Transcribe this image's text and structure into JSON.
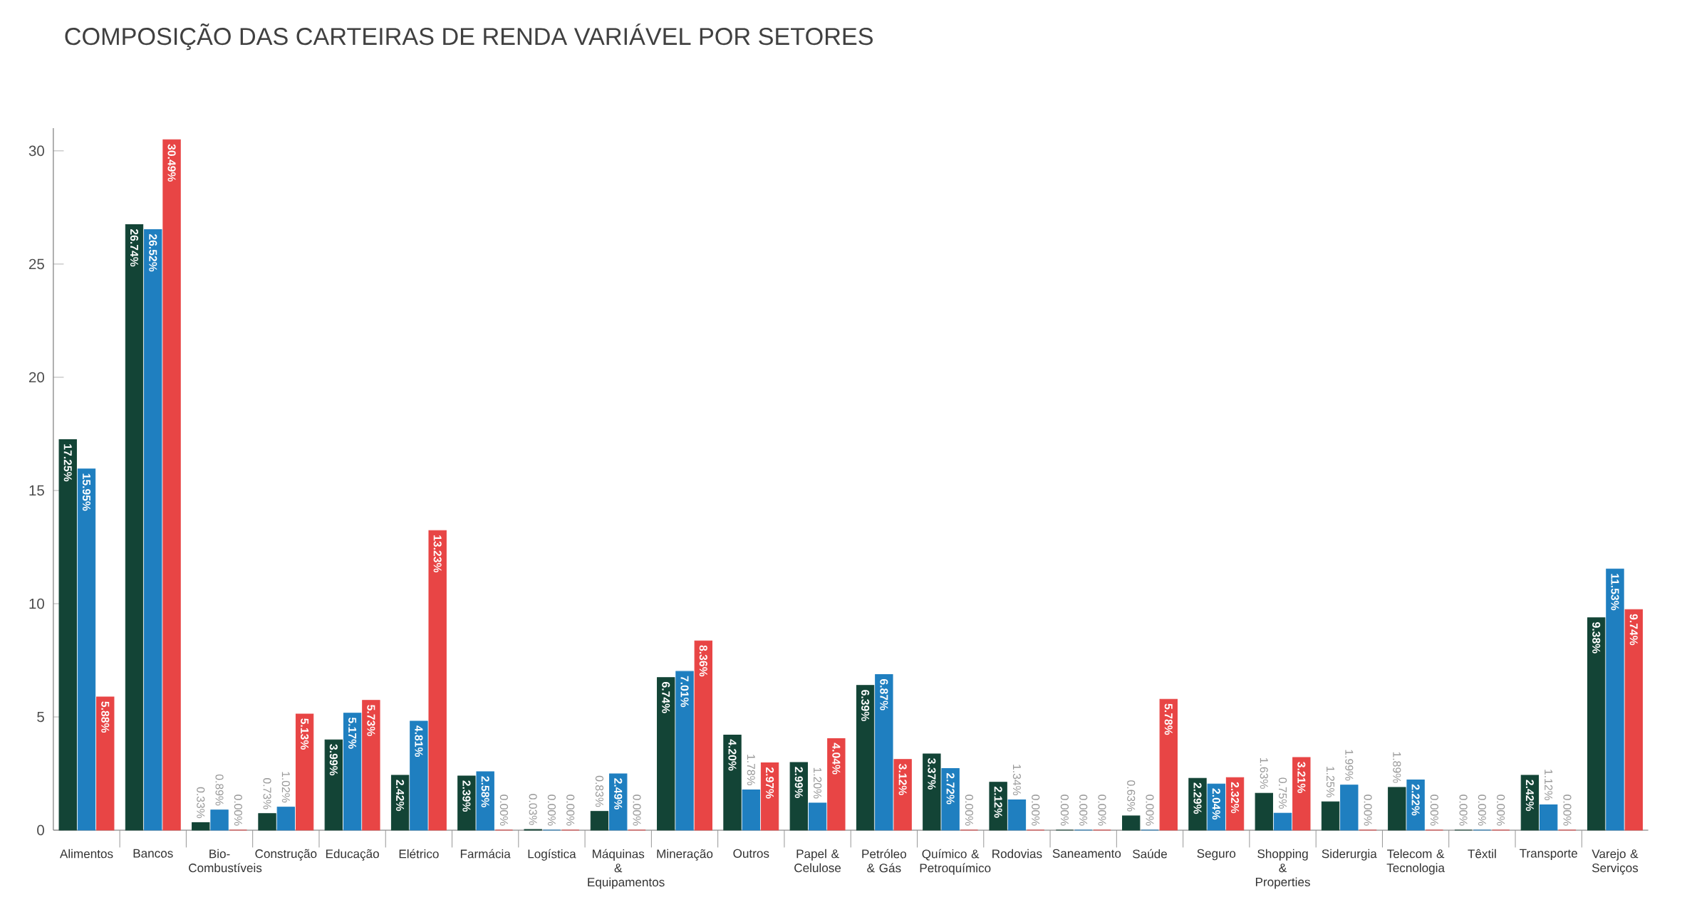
{
  "chart_data": {
    "type": "bar",
    "title": "COMPOSIÇÃO DAS CARTEIRAS DE RENDA VARIÁVEL POR SETORES",
    "categories": [
      "Alimentos",
      "Bancos",
      "Bio- Combustíveis",
      "Construção",
      "Educação",
      "Elétrico",
      "Farmácia",
      "Logística",
      "Máquinas & Equipamentos",
      "Mineração",
      "Outros",
      "Papel & Celulose",
      "Petróleo & Gás",
      "Químico & Petroquímico",
      "Rodovias",
      "Saneamento",
      "Saúde",
      "Seguro",
      "Shopping & Properties",
      "Siderurgia",
      "Telecom & Tecnologia",
      "Têxtil",
      "Transporte",
      "Varejo & Serviços"
    ],
    "series": [
      {
        "color": "#134436",
        "values": [
          17.25,
          26.74,
          0.33,
          0.73,
          3.99,
          2.42,
          2.39,
          0.03,
          0.83,
          6.74,
          4.2,
          2.99,
          6.39,
          3.37,
          2.12,
          0.0,
          0.63,
          2.29,
          1.63,
          1.25,
          1.89,
          0.0,
          2.42,
          9.38
        ],
        "value_labels": [
          "17.25%",
          "26.74%",
          "0.33%",
          "0.73%",
          "3.99%",
          "2.42%",
          "2.39%",
          "0.03%",
          "0.83%",
          "6.74%",
          "4.20%",
          "2.99%",
          "6.39%",
          "3.37%",
          "2.12%",
          "0.00%",
          "0.63%",
          "2.29%",
          "1.63%",
          "1.25%",
          "1.89%",
          "0.00%",
          "2.42%",
          "9.38%"
        ]
      },
      {
        "color": "#1f7fc0",
        "values": [
          15.95,
          26.52,
          0.89,
          1.02,
          5.17,
          4.81,
          2.58,
          0.0,
          2.49,
          7.01,
          1.78,
          1.2,
          6.87,
          2.72,
          1.34,
          0.0,
          0.0,
          2.04,
          0.75,
          1.99,
          2.22,
          0.0,
          1.12,
          11.53
        ],
        "value_labels": [
          "15.95%",
          "26.52%",
          "0.89%",
          "1.02%",
          "5.17%",
          "4.81%",
          "2.58%",
          "0.00%",
          "2.49%",
          "7.01%",
          "1.78%",
          "1.20%",
          "6.87%",
          "2.72%",
          "1.34%",
          "0.00%",
          "0.00%",
          "2.04%",
          "0.75%",
          "1.99%",
          "2.22%",
          "0.00%",
          "1.12%",
          "11.53%"
        ]
      },
      {
        "color": "#e84545",
        "values": [
          5.88,
          30.49,
          0.0,
          5.13,
          5.73,
          13.23,
          0.0,
          0.0,
          0.0,
          8.36,
          2.97,
          4.04,
          3.12,
          0.0,
          0.0,
          0.0,
          5.78,
          2.32,
          3.21,
          0.0,
          0.0,
          0.0,
          0.0,
          9.74
        ],
        "value_labels": [
          "5.88%",
          "30.49%",
          "0.00%",
          "5.13%",
          "5.73%",
          "13.23%",
          "0.00%",
          "0.00%",
          "0.00%",
          "8.36%",
          "2.97%",
          "4.04%",
          "3.12%",
          "0.00%",
          "0.00%",
          "0.00%",
          "5.78%",
          "2.32%",
          "3.21%",
          "0.00%",
          "0.00%",
          "0.00%",
          "0.00%",
          "9.74%"
        ]
      }
    ],
    "ylim": [
      0,
      31
    ],
    "yticks": [
      0,
      5,
      10,
      15,
      20,
      25,
      30
    ],
    "grid": false
  }
}
